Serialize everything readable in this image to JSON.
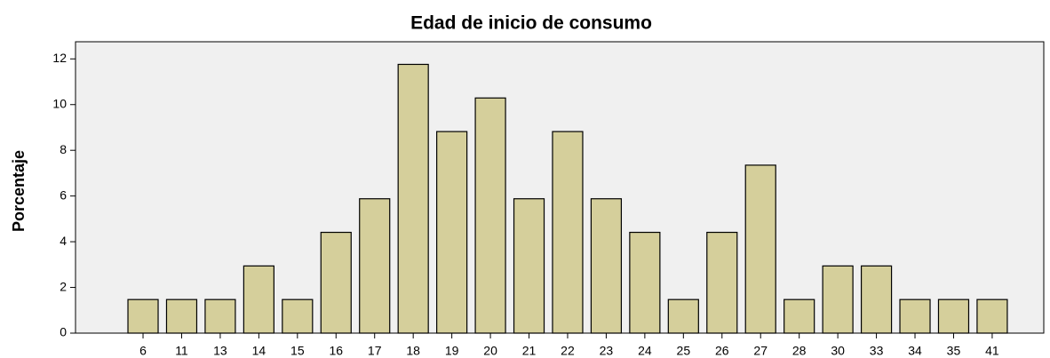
{
  "chart_data": {
    "type": "bar",
    "title": "Edad de inicio de consumo",
    "y_label": "Porcentaje",
    "categories": [
      6,
      11,
      13,
      14,
      15,
      16,
      17,
      18,
      19,
      20,
      21,
      22,
      23,
      24,
      25,
      26,
      27,
      28,
      30,
      33,
      34,
      35,
      41
    ],
    "values": [
      1.47,
      1.47,
      1.47,
      2.94,
      1.47,
      4.41,
      5.88,
      11.76,
      8.82,
      10.29,
      5.88,
      8.82,
      5.88,
      4.41,
      1.47,
      4.41,
      7.35,
      1.47,
      2.94,
      2.94,
      1.47,
      1.47,
      1.47
    ],
    "color": "#d5cf9b",
    "ylim": [
      0,
      12.75
    ],
    "yticks": [
      0,
      2,
      4,
      6,
      8,
      10,
      12
    ],
    "grid": false
  }
}
